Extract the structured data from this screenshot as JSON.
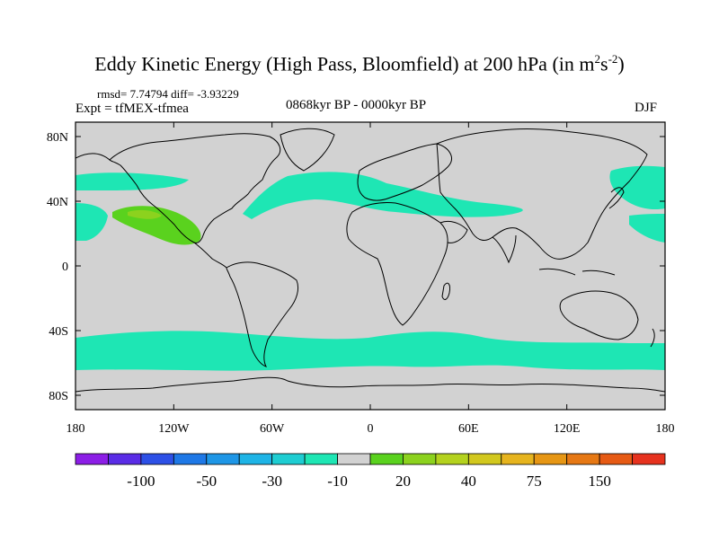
{
  "title": {
    "main": "Eddy Kinetic Energy (High Pass, Bloomfield) at 200 hPa (in m",
    "sup1": "2",
    "mid": "s",
    "sup2": "-2",
    "end": ")"
  },
  "stats": "rmsd= 7.74794 diff= -3.93229",
  "experiment": "Expt = tfMEX-tfmea",
  "period": "0868kyr BP - 0000kyr BP",
  "season": "DJF",
  "axes": {
    "lon_ticks": [
      "180",
      "120W",
      "60W",
      "0",
      "60E",
      "120E",
      "180"
    ],
    "lat_ticks": [
      "80N",
      "40N",
      "0",
      "40S",
      "80S"
    ]
  },
  "colorbar": {
    "colors": [
      "#8c1ee6",
      "#5a2ce6",
      "#2d50e6",
      "#1e78e6",
      "#1e96e6",
      "#1eb4e6",
      "#1ecdd2",
      "#1ee6b4",
      "#d2d2d2",
      "#5ad21e",
      "#8cd21e",
      "#b4d21e",
      "#d2c81e",
      "#e6b41e",
      "#e69614",
      "#e67814",
      "#e65a14",
      "#e6321e"
    ],
    "labels": [
      "-100",
      "-50",
      "-30",
      "-10",
      "20",
      "40",
      "75",
      "150"
    ]
  },
  "map": {
    "land_line_color": "#000000",
    "ocean_fill": "#d2d2d2",
    "anomaly_colors": {
      "negative_small": "#1ee6b4",
      "positive_small": "#5ad21e",
      "positive_mid": "#8cd21e"
    }
  }
}
